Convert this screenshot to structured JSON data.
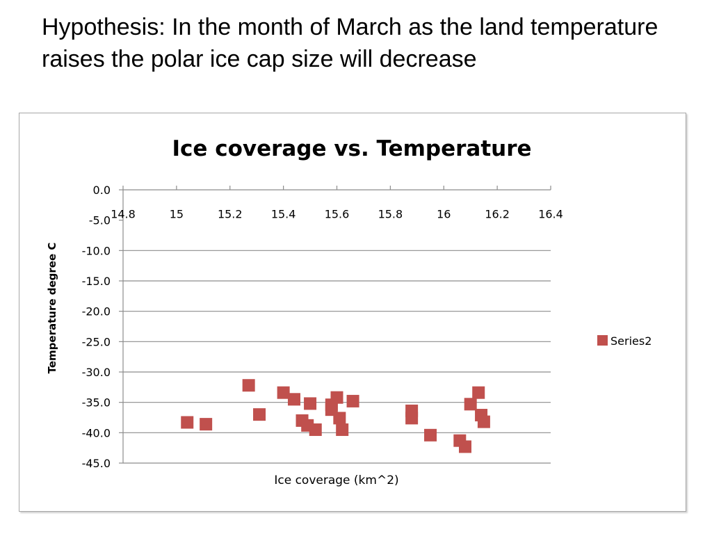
{
  "slide": {
    "heading": "Hypothesis: In the month of March as the land temperature raises the polar ice cap size will decrease"
  },
  "chart_data": {
    "type": "scatter",
    "title": "Ice coverage vs. Temperature",
    "xlabel": "Ice coverage (km^2)",
    "ylabel": "Temperature degree C",
    "xlim": [
      14.8,
      16.4
    ],
    "ylim": [
      -45.0,
      0.0
    ],
    "x_ticks": [
      "14.8",
      "15",
      "15.2",
      "15.4",
      "15.6",
      "15.8",
      "16",
      "16.2",
      "16.4"
    ],
    "y_ticks": [
      "0.0",
      "-5.0",
      "-10.0",
      "-15.0",
      "-20.0",
      "-25.0",
      "-30.0",
      "-35.0",
      "-40.0",
      "-45.0"
    ],
    "grid": "horizontal",
    "legend_position": "right",
    "marker_color": "#c0504d",
    "series": [
      {
        "name": "Series2",
        "points": [
          {
            "x": 15.04,
            "y": -38.3
          },
          {
            "x": 15.11,
            "y": -38.6
          },
          {
            "x": 15.27,
            "y": -32.2
          },
          {
            "x": 15.31,
            "y": -37.0
          },
          {
            "x": 15.4,
            "y": -33.4
          },
          {
            "x": 15.44,
            "y": -34.5
          },
          {
            "x": 15.47,
            "y": -38.0
          },
          {
            "x": 15.49,
            "y": -38.8
          },
          {
            "x": 15.5,
            "y": -35.2
          },
          {
            "x": 15.52,
            "y": -39.5
          },
          {
            "x": 15.58,
            "y": -35.4
          },
          {
            "x": 15.58,
            "y": -36.2
          },
          {
            "x": 15.6,
            "y": -34.2
          },
          {
            "x": 15.61,
            "y": -37.6
          },
          {
            "x": 15.62,
            "y": -39.5
          },
          {
            "x": 15.66,
            "y": -34.8
          },
          {
            "x": 15.88,
            "y": -36.4
          },
          {
            "x": 15.88,
            "y": -37.6
          },
          {
            "x": 15.95,
            "y": -40.4
          },
          {
            "x": 16.06,
            "y": -41.3
          },
          {
            "x": 16.08,
            "y": -42.3
          },
          {
            "x": 16.1,
            "y": -35.3
          },
          {
            "x": 16.13,
            "y": -33.4
          },
          {
            "x": 16.14,
            "y": -37.1
          },
          {
            "x": 16.15,
            "y": -38.2
          }
        ]
      }
    ]
  }
}
